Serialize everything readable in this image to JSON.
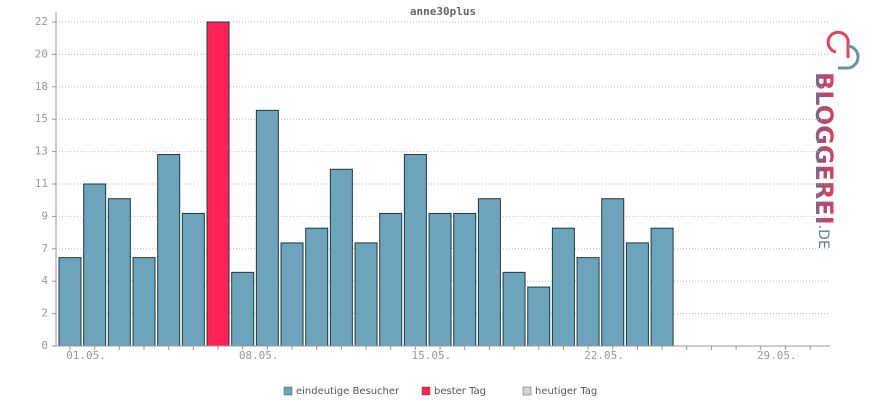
{
  "chart_data": {
    "type": "bar",
    "title": "anne30plus",
    "categories": [
      "01.05.",
      null,
      null,
      null,
      null,
      null,
      null,
      "08.05.",
      null,
      null,
      null,
      null,
      null,
      null,
      "15.05.",
      null,
      null,
      null,
      null,
      null,
      null,
      "22.05.",
      null,
      null,
      null,
      null,
      null,
      null,
      "29.05.",
      null,
      null
    ],
    "series": [
      {
        "name": "eindeutige Besucher",
        "color": "#6ea4bb",
        "values": [
          6,
          11,
          10,
          6,
          13,
          9,
          null,
          5,
          16,
          7,
          8,
          12,
          7,
          9,
          13,
          9,
          9,
          10,
          5,
          4,
          8,
          6,
          10,
          7,
          8,
          null,
          null,
          null,
          null,
          null,
          null
        ]
      },
      {
        "name": "bester Tag",
        "color": "#ff2257",
        "values": [
          null,
          null,
          null,
          null,
          null,
          null,
          22,
          null,
          null,
          null,
          null,
          null,
          null,
          null,
          null,
          null,
          null,
          null,
          null,
          null,
          null,
          null,
          null,
          null,
          null,
          null,
          null,
          null,
          null,
          null,
          null
        ]
      },
      {
        "name": "heutiger Tag",
        "color": "#d3d3d3",
        "values": [
          null,
          null,
          null,
          null,
          null,
          null,
          null,
          null,
          null,
          null,
          null,
          null,
          null,
          null,
          null,
          null,
          null,
          null,
          null,
          null,
          null,
          null,
          null,
          null,
          null,
          null,
          null,
          null,
          null,
          null,
          null
        ]
      }
    ],
    "ylim": [
      0,
      22
    ],
    "yticks": [
      0,
      {
        "value": 2.2,
        "label": "2"
      },
      {
        "value": 4.4,
        "label": "4"
      },
      {
        "value": 6.6,
        "label": "7"
      },
      {
        "value": 8.8,
        "label": "9"
      },
      11,
      {
        "value": 13.2,
        "label": "13"
      },
      {
        "value": 15.4,
        "label": "15"
      },
      {
        "value": 17.6,
        "label": "18"
      },
      {
        "value": 19.8,
        "label": "20"
      },
      22
    ],
    "grid": true,
    "legend": "bottom"
  },
  "logo": {
    "text": "BLOGGEREI",
    "suffix": ".DE"
  }
}
